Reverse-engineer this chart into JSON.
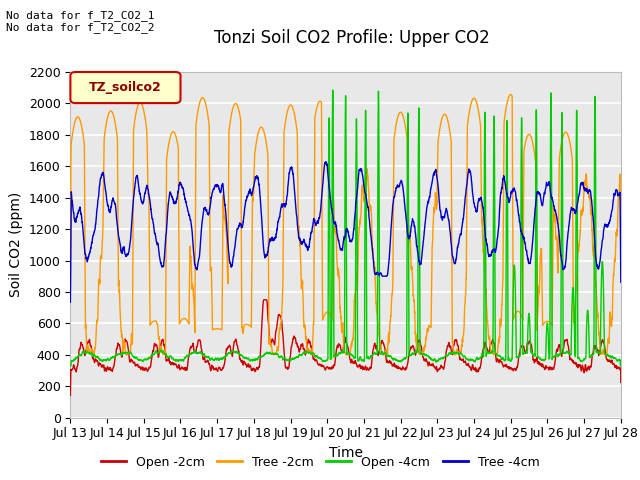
{
  "title": "Tonzi Soil CO2 Profile: Upper CO2",
  "xlabel": "Time",
  "ylabel": "Soil CO2 (ppm)",
  "ylim": [
    0,
    2200
  ],
  "xlim_days": [
    13,
    28
  ],
  "xtick_labels": [
    "Jul 13",
    "Jul 14",
    "Jul 15",
    "Jul 16",
    "Jul 17",
    "Jul 18",
    "Jul 19",
    "Jul 20",
    "Jul 21",
    "Jul 22",
    "Jul 23",
    "Jul 24",
    "Jul 25",
    "Jul 26",
    "Jul 27",
    "Jul 28"
  ],
  "legend_entries": [
    "Open -2cm",
    "Tree -2cm",
    "Open -4cm",
    "Tree -4cm"
  ],
  "line_colors": [
    "#cc0000",
    "#ff9900",
    "#00cc00",
    "#0000cc"
  ],
  "annotation_text": "No data for f_T2_CO2_1\nNo data for f_T2_CO2_2",
  "legend_box_label": "TZ_soilco2",
  "legend_box_edge_color": "#cc0000",
  "legend_box_text_color": "#8b0000",
  "legend_box_face_color": "#ffffcc",
  "plot_bg_color": "#e8e8e8",
  "title_fontsize": 12,
  "axis_fontsize": 10,
  "tick_fontsize": 9,
  "annotation_fontsize": 8,
  "fig_width": 6.4,
  "fig_height": 4.8,
  "dpi": 100
}
